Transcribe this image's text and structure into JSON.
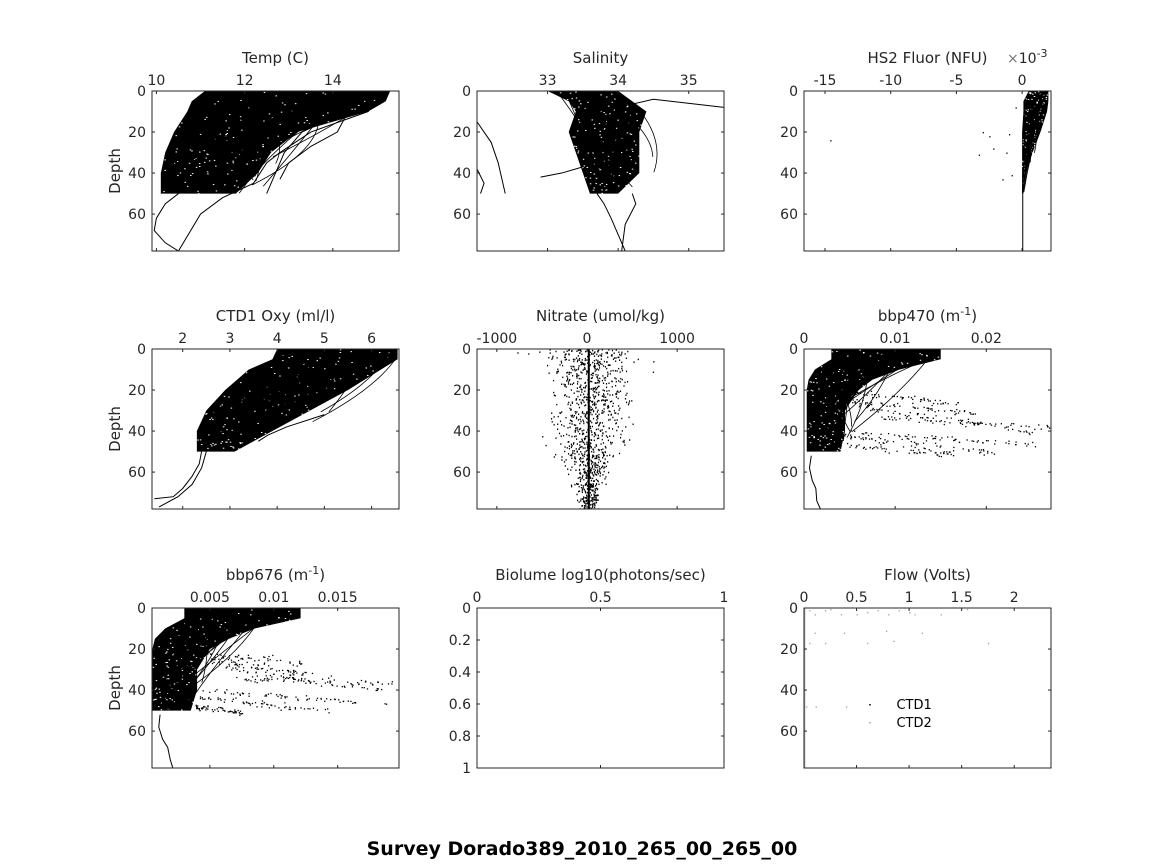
{
  "figure": {
    "suptitle": "Survey Dorado389_2010_265_00_265_00"
  },
  "chart_data": [
    {
      "id": "temp",
      "type": "line",
      "title": "Temp (C)",
      "xlabel": "Temp (C)",
      "ylabel": "Depth",
      "xlim": [
        9.9,
        15.5
      ],
      "ylim": [
        0,
        78
      ],
      "xticks": [
        10,
        12,
        14
      ],
      "xtick_labels": [
        "10",
        "12",
        "14"
      ],
      "yticks": [
        0,
        20,
        40,
        60
      ],
      "ytick_labels": [
        "0",
        "20",
        "40",
        "60"
      ],
      "y_reversed": true,
      "x_axis_location": "top",
      "description": "Dense overlapping CTD profiles; warm (up to ~15.3 C) near surface, cooling to ~10-11 C by 50 m; a few profiles extend to ~78 m near 10.5 C",
      "envelope": {
        "depth": [
          0,
          5,
          10,
          20,
          30,
          40,
          50
        ],
        "min": [
          11.1,
          10.8,
          10.7,
          10.4,
          10.2,
          10.1,
          10.1
        ],
        "max": [
          15.3,
          15.2,
          14.8,
          13.2,
          12.6,
          12.3,
          11.8
        ]
      },
      "traces": [
        {
          "x": [
            15.0,
            14.8,
            13.5,
            12.8,
            12.5,
            12.2,
            11.5,
            11.0,
            10.5
          ],
          "y": [
            5,
            10,
            20,
            30,
            35,
            45,
            52,
            60,
            78
          ]
        },
        {
          "x": [
            14.3,
            14.1,
            13.5,
            13.0,
            12.8
          ],
          "y": [
            12,
            20,
            27,
            35,
            43
          ]
        },
        {
          "x": [
            13.8,
            13.3,
            12.9,
            12.7,
            12.5
          ],
          "y": [
            15,
            20,
            30,
            40,
            50
          ]
        },
        {
          "x": [
            10.5,
            10.2,
            10.0,
            9.95,
            10.2,
            10.5
          ],
          "y": [
            50,
            55,
            62,
            68,
            74,
            78
          ]
        }
      ]
    },
    {
      "id": "salinity",
      "type": "line",
      "title": "Salinity",
      "xlabel": "Salinity",
      "ylabel": "",
      "xlim": [
        32.0,
        35.5
      ],
      "ylim": [
        0,
        78
      ],
      "xticks": [
        33,
        34,
        35
      ],
      "xtick_labels": [
        "33",
        "34",
        "35"
      ],
      "yticks": [
        0,
        20,
        40,
        60
      ],
      "ytick_labels": [
        "0",
        "20",
        "40",
        "60"
      ],
      "y_reversed": true,
      "x_axis_location": "top",
      "description": "Core band 33.6-33.8 from 0-50 m, spurious excursions to 32.0 and 35.5 near surface",
      "envelope": {
        "depth": [
          0,
          5,
          10,
          20,
          30,
          40,
          50
        ],
        "min": [
          33.0,
          33.3,
          33.4,
          33.3,
          33.4,
          33.5,
          33.6
        ],
        "max": [
          34.0,
          34.2,
          34.4,
          34.3,
          34.3,
          34.3,
          34.0
        ]
      },
      "traces": [
        {
          "x": [
            33.7,
            33.8,
            33.9,
            34.0,
            34.1
          ],
          "y": [
            50,
            55,
            62,
            70,
            78
          ]
        },
        {
          "x": [
            34.2,
            34.25,
            34.1,
            34.05
          ],
          "y": [
            50,
            55,
            65,
            78
          ]
        },
        {
          "x": [
            32.0,
            32.2,
            32.3,
            32.4
          ],
          "y": [
            15,
            25,
            35,
            50
          ]
        },
        {
          "x": [
            32.0,
            32.1,
            32.05
          ],
          "y": [
            38,
            45,
            50
          ]
        },
        {
          "x": [
            32.9,
            33.2,
            33.5
          ],
          "y": [
            42,
            40,
            37
          ]
        },
        {
          "x": [
            34.0,
            34.5,
            35.5
          ],
          "y": [
            8,
            4,
            8
          ]
        }
      ]
    },
    {
      "id": "hs2_fluor",
      "type": "scatter",
      "title": "HS2 Fluor (NFU)",
      "xlabel": "HS2 Fluor (NFU)",
      "x_multiplier_label": "×10-3",
      "x_multiplier_exponent": "-3",
      "ylabel": "",
      "xlim": [
        -16.6,
        2.2
      ],
      "ylim": [
        0,
        78
      ],
      "xticks": [
        -15,
        -10,
        -5,
        0
      ],
      "xtick_labels": [
        "-15",
        "-10",
        "-5",
        "0"
      ],
      "yticks": [
        0,
        20,
        40,
        60
      ],
      "ytick_labels": [
        "0",
        "20",
        "40",
        "60"
      ],
      "y_reversed": true,
      "x_axis_location": "top",
      "description": "Values near 0-2 (x1e-3) with dense wedge near surface; single line at ~0 extending to 78 m",
      "envelope": {
        "depth": [
          0,
          5,
          10,
          20,
          30,
          40,
          50
        ],
        "min": [
          0.5,
          0.1,
          0.1,
          0.0,
          0.0,
          0.0,
          0.0
        ],
        "max": [
          2.0,
          2.0,
          1.9,
          1.4,
          0.8,
          0.3,
          0.1
        ]
      },
      "points": {
        "x": [
          -3.0,
          -2.5,
          -1.0,
          -2.2,
          -1.2,
          -1.5,
          -0.8,
          -14.6,
          -3.3,
          -0.5
        ],
        "y": [
          20,
          22,
          21,
          28,
          30,
          43,
          41,
          24,
          31,
          8
        ]
      },
      "traces": [
        {
          "x": [
            0.05,
            0.05,
            0.05
          ],
          "y": [
            40,
            60,
            78
          ]
        }
      ]
    },
    {
      "id": "ctd1_oxy",
      "type": "line",
      "title": "CTD1 Oxy (ml/l)",
      "xlabel": "CTD1 Oxy (ml/l)",
      "ylabel": "Depth",
      "xlim": [
        1.35,
        6.58
      ],
      "ylim": [
        0,
        78
      ],
      "xticks": [
        2,
        3,
        4,
        5,
        6
      ],
      "xtick_labels": [
        "2",
        "3",
        "4",
        "5",
        "6"
      ],
      "yticks": [
        0,
        20,
        40,
        60
      ],
      "ytick_labels": [
        "0",
        "20",
        "40",
        "60"
      ],
      "y_reversed": true,
      "x_axis_location": "top",
      "description": "Oxygen ~4-6.5 ml/l near surface decreasing to ~2.3-3 ml/l at 50 m",
      "envelope": {
        "depth": [
          0,
          5,
          10,
          20,
          30,
          40,
          50
        ],
        "min": [
          4.0,
          3.9,
          3.4,
          2.9,
          2.5,
          2.3,
          2.3
        ],
        "max": [
          6.55,
          6.55,
          6.2,
          5.5,
          4.7,
          3.9,
          3.1
        ]
      },
      "traces": [
        {
          "x": [
            2.4,
            2.35,
            2.2,
            2.0,
            1.8,
            1.4
          ],
          "y": [
            50,
            56,
            62,
            68,
            72,
            73
          ]
        },
        {
          "x": [
            2.5,
            2.4,
            2.2,
            1.9,
            1.5
          ],
          "y": [
            50,
            58,
            66,
            72,
            77
          ]
        },
        {
          "x": [
            5.0,
            4.2,
            3.8,
            3.6
          ],
          "y": [
            32,
            38,
            42,
            45
          ]
        }
      ]
    },
    {
      "id": "nitrate",
      "type": "scatter",
      "title": "Nitrate (umol/kg)",
      "xlabel": "Nitrate (umol/kg)",
      "ylabel": "",
      "xlim": [
        -1220,
        1520
      ],
      "ylim": [
        0,
        78
      ],
      "xticks": [
        -1000,
        0,
        1000
      ],
      "xtick_labels": [
        "-1000",
        "0",
        "1000"
      ],
      "yticks": [
        0,
        20,
        40,
        60
      ],
      "ytick_labels": [
        "0",
        "20",
        "40",
        "60"
      ],
      "y_reversed": true,
      "x_axis_location": "top",
      "description": "Noisy scatter centered near 0-30 umol/kg, spread roughly -900 to +1400 above 50 m; vertical line near 20 to 78 m",
      "spread": {
        "depth": [
          0,
          10,
          20,
          30,
          40,
          50,
          60,
          78
        ],
        "sigma": [
          400,
          380,
          330,
          330,
          320,
          250,
          150,
          80
        ]
      },
      "center": 20
    },
    {
      "id": "bbp470",
      "type": "scatter",
      "title": "bbp470 (m-1)",
      "title_base": "bbp470 (m",
      "title_sup": "-1",
      "title_end": ")",
      "xlabel": "bbp470 (m-1)",
      "ylabel": "",
      "xlim": [
        0,
        0.0271
      ],
      "ylim": [
        0,
        78
      ],
      "xticks": [
        0,
        0.01,
        0.02
      ],
      "xtick_labels": [
        "0",
        "0.01",
        "0.02"
      ],
      "yticks": [
        0,
        20,
        40,
        60
      ],
      "ytick_labels": [
        "0",
        "20",
        "40",
        "60"
      ],
      "y_reversed": true,
      "x_axis_location": "top",
      "description": "Dense core 0.0005-0.015 near surface, narrowing to ~0.0005-0.003 below 20 m; streaks up to 0.027 at 35-48 m",
      "envelope": {
        "depth": [
          0,
          5,
          10,
          15,
          20,
          30,
          40,
          50
        ],
        "min": [
          0.003,
          0.003,
          0.0012,
          0.0005,
          0.0003,
          0.0003,
          0.0003,
          0.0003
        ],
        "max": [
          0.015,
          0.015,
          0.0105,
          0.0075,
          0.006,
          0.0045,
          0.0045,
          0.004
        ]
      },
      "streaks": [
        {
          "x0": 0.004,
          "x1": 0.017,
          "y0": 21,
          "y1": 26
        },
        {
          "x0": 0.005,
          "x1": 0.019,
          "y0": 25,
          "y1": 31
        },
        {
          "x0": 0.006,
          "x1": 0.025,
          "y0": 28,
          "y1": 40
        },
        {
          "x0": 0.008,
          "x1": 0.027,
          "y0": 33,
          "y1": 38
        },
        {
          "x0": 0.005,
          "x1": 0.026,
          "y0": 40,
          "y1": 47
        },
        {
          "x0": 0.004,
          "x1": 0.021,
          "y0": 42,
          "y1": 50
        },
        {
          "x0": 0.003,
          "x1": 0.0165,
          "y0": 46,
          "y1": 51
        }
      ],
      "traces": [
        {
          "x": [
            0.0008,
            0.0006,
            0.0009,
            0.0013,
            0.0014,
            0.0018
          ],
          "y": [
            52,
            58,
            64,
            68,
            74,
            78
          ]
        }
      ]
    },
    {
      "id": "bbp676",
      "type": "scatter",
      "title": "bbp676 (m-1)",
      "title_base": "bbp676 (m",
      "title_sup": "-1",
      "title_end": ")",
      "xlabel": "bbp676 (m-1)",
      "ylabel": "Depth",
      "xlim": [
        0.00047,
        0.0198
      ],
      "ylim": [
        0,
        78
      ],
      "xticks": [
        0.005,
        0.01,
        0.015
      ],
      "xtick_labels": [
        "0.005",
        "0.01",
        "0.015"
      ],
      "yticks": [
        0,
        20,
        40,
        60
      ],
      "ytick_labels": [
        "0",
        "20",
        "40",
        "60"
      ],
      "y_reversed": true,
      "x_axis_location": "top",
      "description": "Similar to bbp470; dense core 0.0007-0.012 near surface; streaks to ~0.0195 at 37-47 m",
      "envelope": {
        "depth": [
          0,
          5,
          10,
          15,
          20,
          30,
          40,
          50
        ],
        "min": [
          0.003,
          0.003,
          0.0015,
          0.0007,
          0.0005,
          0.0005,
          0.0005,
          0.0005
        ],
        "max": [
          0.0121,
          0.0121,
          0.0085,
          0.0065,
          0.005,
          0.004,
          0.004,
          0.0035
        ]
      },
      "streaks": [
        {
          "x0": 0.004,
          "x1": 0.0125,
          "y0": 22,
          "y1": 27
        },
        {
          "x0": 0.005,
          "x1": 0.0145,
          "y0": 26,
          "y1": 33
        },
        {
          "x0": 0.006,
          "x1": 0.0185,
          "y0": 29,
          "y1": 40
        },
        {
          "x0": 0.007,
          "x1": 0.0195,
          "y0": 34,
          "y1": 37
        },
        {
          "x0": 0.004,
          "x1": 0.019,
          "y0": 40,
          "y1": 47
        },
        {
          "x0": 0.003,
          "x1": 0.0145,
          "y0": 43,
          "y1": 50
        },
        {
          "x0": 0.003,
          "x1": 0.0075,
          "y0": 47,
          "y1": 51
        }
      ],
      "traces": [
        {
          "x": [
            0.0011,
            0.001,
            0.0013,
            0.0017,
            0.0019,
            0.0021
          ],
          "y": [
            52,
            58,
            64,
            68,
            74,
            78
          ]
        }
      ]
    },
    {
      "id": "biolume",
      "type": "line",
      "title": "Biolume log10(photons/sec)",
      "xlabel": "Biolume log10(photons/sec)",
      "ylabel": "",
      "xlim": [
        0,
        1
      ],
      "ylim": [
        0,
        1
      ],
      "xticks": [
        0,
        0.5,
        1
      ],
      "xtick_labels": [
        "0",
        "0.5",
        "1"
      ],
      "yticks": [
        0,
        0.2,
        0.4,
        0.6,
        0.8,
        1
      ],
      "ytick_labels": [
        "0",
        "0.2",
        "0.4",
        "0.6",
        "0.8",
        "1"
      ],
      "y_reversed": true,
      "x_axis_location": "top",
      "description": "Empty axes, no data"
    },
    {
      "id": "flow",
      "type": "scatter",
      "title": "Flow (Volts)",
      "xlabel": "Flow (Volts)",
      "ylabel": "",
      "xlim": [
        0,
        2.35
      ],
      "ylim": [
        0,
        78
      ],
      "xticks": [
        0,
        0.5,
        1,
        1.5,
        2
      ],
      "xtick_labels": [
        "0",
        "0.5",
        "1",
        "1.5",
        "2"
      ],
      "yticks": [
        0,
        20,
        40,
        60
      ],
      "ytick_labels": [
        "0",
        "20",
        "40",
        "60"
      ],
      "y_reversed": true,
      "x_axis_location": "top",
      "description": "Sparse gray points; gray vertical line at 0",
      "legend": {
        "location": "inside-lower-center",
        "entries": [
          {
            "label": "CTD1",
            "color": "#000000"
          },
          {
            "label": "CTD2",
            "color": "#a0a0a0"
          }
        ]
      },
      "points": {
        "x": [
          0.05,
          0.1,
          0.2,
          0.25,
          0.35,
          0.5,
          0.6,
          0.7,
          0.8,
          0.9,
          1.0,
          1.05,
          1.3,
          1.55,
          0.1,
          0.38,
          0.78,
          1.12,
          0.05,
          0.2,
          0.6,
          0.85,
          1.75,
          0.02,
          0.11,
          0.4
        ],
        "y": [
          1,
          3,
          1,
          0.5,
          3,
          3,
          2,
          1,
          3,
          1,
          2,
          3,
          3,
          0.5,
          12,
          12,
          11,
          12,
          17,
          17,
          17,
          16,
          17,
          48,
          48,
          48
        ]
      },
      "point_color": "#a0a0a0"
    }
  ]
}
